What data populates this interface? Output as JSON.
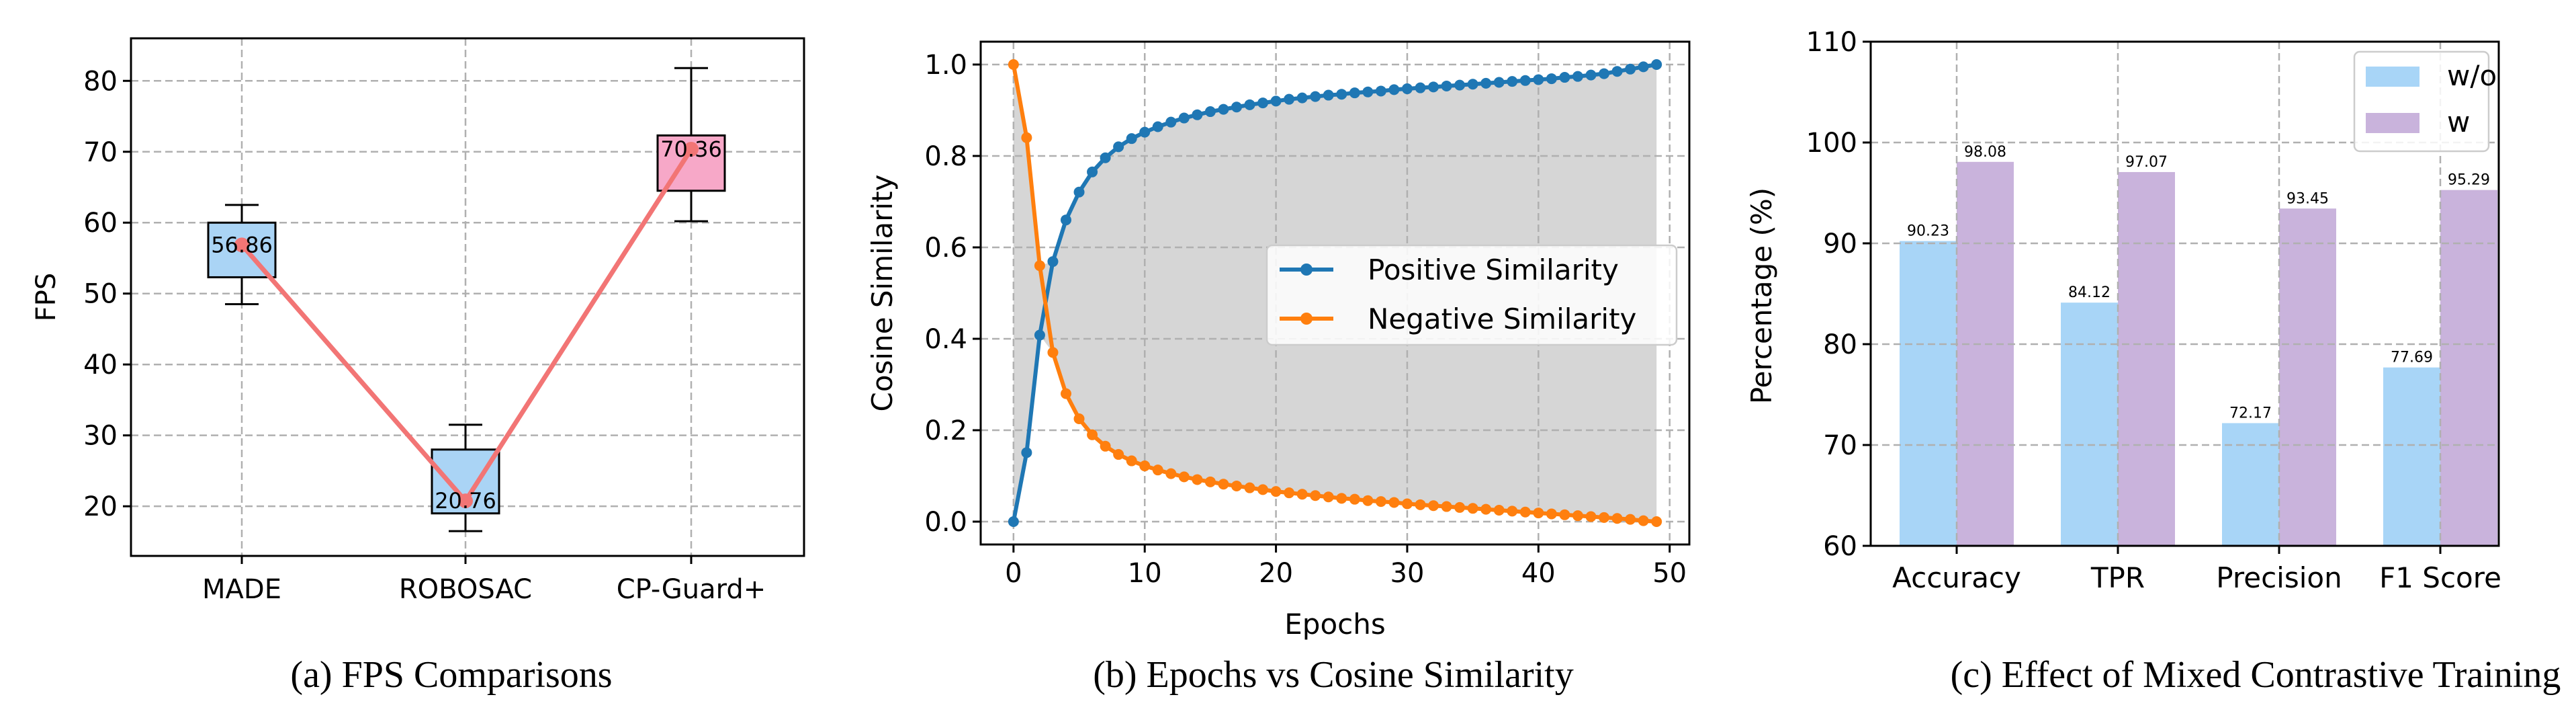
{
  "chart_data": [
    {
      "type": "box",
      "caption": "(a) FPS Comparisons",
      "ylabel": "FPS",
      "ylim": [
        13,
        86
      ],
      "yticks": [
        20,
        30,
        40,
        50,
        60,
        70,
        80
      ],
      "grid": true,
      "categories": [
        "MADE",
        "ROBOSAC",
        "CP-Guard+"
      ],
      "boxes": [
        {
          "whisker_low": 48.5,
          "q1": 52.3,
          "median": 56.86,
          "q3": 60.0,
          "whisker_high": 62.5,
          "color": "#aad4f5"
        },
        {
          "whisker_low": 16.5,
          "q1": 19.0,
          "median": 20.76,
          "q3": 28.0,
          "whisker_high": 31.5,
          "color": "#aad4f5"
        },
        {
          "whisker_low": 60.2,
          "q1": 64.5,
          "median": 70.36,
          "q3": 72.3,
          "whisker_high": 81.8,
          "color": "#f7a8c8"
        }
      ],
      "means": [
        56.86,
        20.76,
        70.36
      ],
      "mean_labels": [
        "56.86",
        "20.76",
        "70.36"
      ],
      "line_color": "#f27575"
    },
    {
      "type": "line",
      "caption": "(b) Epochs vs Cosine Similarity",
      "xlabel": "Epochs",
      "ylabel": "Cosine Similarity",
      "xlim": [
        -2.5,
        51.5
      ],
      "ylim": [
        -0.05,
        1.05
      ],
      "xticks": [
        0,
        10,
        20,
        30,
        40,
        50
      ],
      "yticks": [
        "0.0",
        "0.2",
        "0.4",
        "0.6",
        "0.8",
        "1.0"
      ],
      "grid": true,
      "legend_position": "center-right",
      "fill_between": true,
      "fill_color": "#d6d6d6",
      "series": [
        {
          "name": "Positive Similarity",
          "color": "#1f77b4",
          "values": [
            0.0,
            0.151,
            0.408,
            0.569,
            0.66,
            0.721,
            0.765,
            0.796,
            0.82,
            0.838,
            0.852,
            0.864,
            0.874,
            0.883,
            0.89,
            0.897,
            0.902,
            0.907,
            0.912,
            0.916,
            0.92,
            0.924,
            0.927,
            0.93,
            0.933,
            0.935,
            0.938,
            0.94,
            0.942,
            0.945,
            0.947,
            0.949,
            0.951,
            0.953,
            0.955,
            0.957,
            0.959,
            0.961,
            0.963,
            0.965,
            0.967,
            0.969,
            0.972,
            0.974,
            0.977,
            0.98,
            0.985,
            0.99,
            0.995,
            1.0
          ]
        },
        {
          "name": "Negative Similarity",
          "color": "#ff7f0e",
          "values": [
            1.0,
            0.84,
            0.56,
            0.37,
            0.28,
            0.225,
            0.19,
            0.165,
            0.147,
            0.133,
            0.122,
            0.113,
            0.105,
            0.098,
            0.092,
            0.087,
            0.082,
            0.078,
            0.074,
            0.07,
            0.066,
            0.063,
            0.06,
            0.057,
            0.054,
            0.051,
            0.049,
            0.046,
            0.044,
            0.042,
            0.039,
            0.037,
            0.035,
            0.033,
            0.031,
            0.029,
            0.027,
            0.025,
            0.023,
            0.021,
            0.019,
            0.017,
            0.015,
            0.013,
            0.011,
            0.009,
            0.007,
            0.005,
            0.002,
            0.0
          ]
        }
      ]
    },
    {
      "type": "bar",
      "caption": "(c) Effect of Mixed Contrastive Training",
      "ylabel": "Percentage (%)",
      "ylim": [
        60,
        110
      ],
      "yticks": [
        60,
        70,
        80,
        90,
        100,
        110
      ],
      "grid": true,
      "legend_position": "top-right",
      "categories": [
        "Accuracy",
        "TPR",
        "Precision",
        "F1 Score"
      ],
      "series": [
        {
          "name": "w/o",
          "color": "#a8d5f7",
          "values": [
            90.23,
            84.12,
            72.17,
            77.69
          ],
          "labels": [
            "90.23",
            "84.12",
            "72.17",
            "77.69"
          ]
        },
        {
          "name": "w",
          "color": "#c9b3dc",
          "values": [
            98.08,
            97.07,
            93.45,
            95.29
          ],
          "labels": [
            "98.08",
            "97.07",
            "93.45",
            "95.29"
          ]
        }
      ]
    }
  ]
}
